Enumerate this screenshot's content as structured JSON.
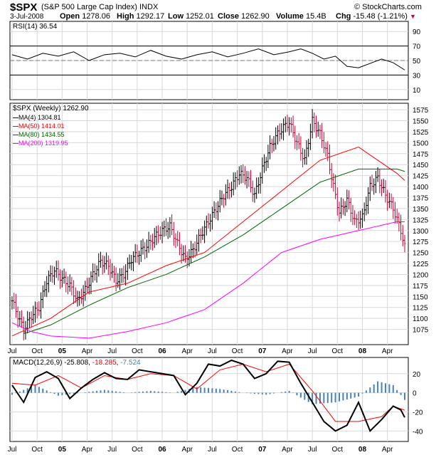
{
  "header": {
    "symbol": "$SPX",
    "name": "(S&P 500 Large Cap Index) INDX",
    "brand": "© StockCharts.com",
    "date": "3-Jul-2008",
    "open_label": "Open",
    "open": "1278.06",
    "high_label": "High",
    "high": "1292.17",
    "low_label": "Low",
    "low": "1252.01",
    "close_label": "Close",
    "close": "1262.90",
    "volume_label": "Volume",
    "volume": "15.4B",
    "chg_label": "Chg",
    "chg": "-15.48 (-1.21%)",
    "chg_arrow": "▼"
  },
  "rsi": {
    "label": "RSI(14)",
    "value": "36.54"
  },
  "price_panel": {
    "label": "$SPX (Weekly)",
    "value": "1262.90",
    "legend": [
      {
        "name": "MA(4)",
        "value": "1304.81",
        "color": "#00008b"
      },
      {
        "name": "MA(50)",
        "value": "1414.01",
        "color": "#ff0000"
      },
      {
        "name": "MA(80)",
        "value": "1434.55",
        "color": "#006400"
      },
      {
        "name": "MA(200)",
        "value": "1319.95",
        "color": "#ff00ff"
      }
    ]
  },
  "macd": {
    "label": "MACD(12,26,9)",
    "value1": "-25.808",
    "value2": "-18.285",
    "value3": "-7.524"
  },
  "colors": {
    "up": "#000000",
    "down": "#cc0033",
    "macd_line": "#000000",
    "signal": "#ff0000",
    "histogram": "#4682b4",
    "rsi_line": "#000000"
  },
  "chart_data": [
    {
      "type": "line",
      "title": "RSI(14) 36.54",
      "ylim": [
        0,
        100
      ],
      "y_ticks": [
        "90",
        "70",
        "50",
        "30",
        "10"
      ],
      "overbought": 70,
      "oversold": 30,
      "x_tick_labels": [
        "Jul",
        "Oct",
        "05",
        "Apr",
        "Jul",
        "Oct",
        "06",
        "Apr",
        "Jul",
        "Oct",
        "07",
        "Apr",
        "Jul",
        "Oct",
        "08",
        "Apr"
      ],
      "series": [
        {
          "name": "RSI(14)",
          "x": [
            0,
            8,
            16,
            24,
            32,
            40,
            48,
            56,
            64,
            72,
            80,
            88,
            96,
            104,
            112,
            120,
            128,
            136,
            144,
            150,
            156,
            162,
            168,
            174,
            180,
            186,
            192,
            198,
            204
          ],
          "values": [
            58,
            52,
            60,
            56,
            62,
            50,
            58,
            60,
            55,
            64,
            56,
            52,
            58,
            62,
            55,
            60,
            66,
            58,
            62,
            66,
            60,
            52,
            56,
            42,
            40,
            46,
            52,
            47,
            37
          ]
        }
      ]
    },
    {
      "type": "line",
      "title": "$SPX (Weekly) 1262.90",
      "x_label_unit": "week index (0 = first week of Jul 2004)",
      "ylim": [
        1050,
        1580
      ],
      "y_ticks": [
        "1575",
        "1550",
        "1525",
        "1500",
        "1475",
        "1450",
        "1425",
        "1400",
        "1375",
        "1350",
        "1325",
        "1300",
        "1275",
        "1250",
        "1225",
        "1200",
        "1175",
        "1150",
        "1125",
        "1100",
        "1075"
      ],
      "x_tick_labels": [
        "Jul",
        "Oct",
        "05",
        "Apr",
        "Jul",
        "Oct",
        "06",
        "Apr",
        "Jul",
        "Oct",
        "07",
        "Apr",
        "Jul",
        "Oct",
        "08",
        "Apr"
      ],
      "series": [
        {
          "name": "$SPX (Weekly)",
          "x": [
            0,
            4,
            6,
            10,
            14,
            18,
            22,
            26,
            30,
            34,
            38,
            42,
            46,
            50,
            54,
            58,
            62,
            66,
            70,
            74,
            78,
            82,
            86,
            90,
            94,
            98,
            102,
            106,
            110,
            114,
            118,
            122,
            126,
            130,
            134,
            138,
            142,
            144,
            148,
            152,
            156,
            160,
            164,
            166,
            170,
            174,
            178,
            182,
            186,
            190,
            194,
            198,
            202,
            204
          ],
          "values": [
            1140,
            1095,
            1075,
            1105,
            1125,
            1185,
            1210,
            1190,
            1175,
            1140,
            1165,
            1200,
            1230,
            1220,
            1185,
            1200,
            1235,
            1250,
            1265,
            1285,
            1300,
            1310,
            1270,
            1235,
            1255,
            1290,
            1320,
            1350,
            1380,
            1400,
            1430,
            1420,
            1380,
            1440,
            1490,
            1520,
            1540,
            1545,
            1500,
            1460,
            1550,
            1520,
            1470,
            1420,
            1340,
            1370,
            1320,
            1330,
            1400,
            1420,
            1380,
            1350,
            1300,
            1262.9
          ]
        },
        {
          "name": "MA(50)",
          "x": [
            0,
            20,
            40,
            60,
            80,
            100,
            120,
            140,
            160,
            180,
            200,
            204
          ],
          "values": [
            1060,
            1100,
            1160,
            1180,
            1220,
            1250,
            1320,
            1390,
            1460,
            1490,
            1430,
            1414
          ]
        },
        {
          "name": "MA(80)",
          "x": [
            6,
            20,
            40,
            60,
            80,
            100,
            120,
            140,
            160,
            180,
            200,
            204
          ],
          "values": [
            1065,
            1085,
            1130,
            1170,
            1200,
            1240,
            1290,
            1350,
            1410,
            1440,
            1440,
            1434.55
          ]
        },
        {
          "name": "MA(200)",
          "x": [
            0,
            10,
            20,
            40,
            60,
            80,
            100,
            120,
            140,
            160,
            180,
            200,
            204
          ],
          "values": [
            1090,
            1070,
            1060,
            1055,
            1070,
            1090,
            1120,
            1180,
            1250,
            1280,
            1300,
            1320,
            1319.95
          ]
        }
      ]
    },
    {
      "type": "line",
      "title": "MACD(12,26,9)",
      "ylim": [
        -48,
        34
      ],
      "y_ticks": [
        "20",
        "0",
        "-20",
        "-40"
      ],
      "x_tick_labels": [
        "Jul",
        "Oct",
        "05",
        "Apr",
        "Jul",
        "Oct",
        "06",
        "Apr",
        "Jul",
        "Oct",
        "07",
        "Apr",
        "Jul",
        "Oct",
        "08",
        "Apr"
      ],
      "series": [
        {
          "name": "MACD",
          "x": [
            0,
            6,
            12,
            18,
            24,
            30,
            36,
            42,
            48,
            54,
            60,
            66,
            72,
            78,
            84,
            90,
            96,
            102,
            108,
            114,
            120,
            126,
            132,
            138,
            144,
            150,
            156,
            162,
            168,
            174,
            180,
            186,
            192,
            198,
            202,
            204
          ],
          "values": [
            8,
            -10,
            16,
            22,
            15,
            -6,
            5,
            14,
            21,
            15,
            14,
            24,
            22,
            20,
            18,
            -2,
            10,
            30,
            28,
            34,
            30,
            15,
            20,
            33,
            32,
            10,
            -10,
            -30,
            -40,
            -34,
            -10,
            -40,
            -28,
            -14,
            -18,
            -25.8
          ]
        },
        {
          "name": "Signal",
          "x": [
            0,
            12,
            24,
            36,
            48,
            60,
            72,
            84,
            96,
            108,
            120,
            132,
            144,
            156,
            168,
            180,
            192,
            198,
            204
          ],
          "values": [
            10,
            8,
            18,
            5,
            18,
            14,
            20,
            18,
            4,
            24,
            30,
            22,
            30,
            2,
            -30,
            -30,
            -25,
            -14,
            -18.3
          ]
        },
        {
          "name": "Histogram",
          "x": [
            0,
            12,
            24,
            36,
            48,
            60,
            72,
            84,
            96,
            108,
            120,
            132,
            144,
            156,
            168,
            180,
            190,
            198,
            204
          ],
          "values": [
            -2,
            8,
            -3,
            0,
            3,
            0,
            2,
            0,
            6,
            4,
            0,
            -2,
            2,
            -12,
            -10,
            -4,
            12,
            8,
            -7.5
          ]
        }
      ]
    }
  ]
}
